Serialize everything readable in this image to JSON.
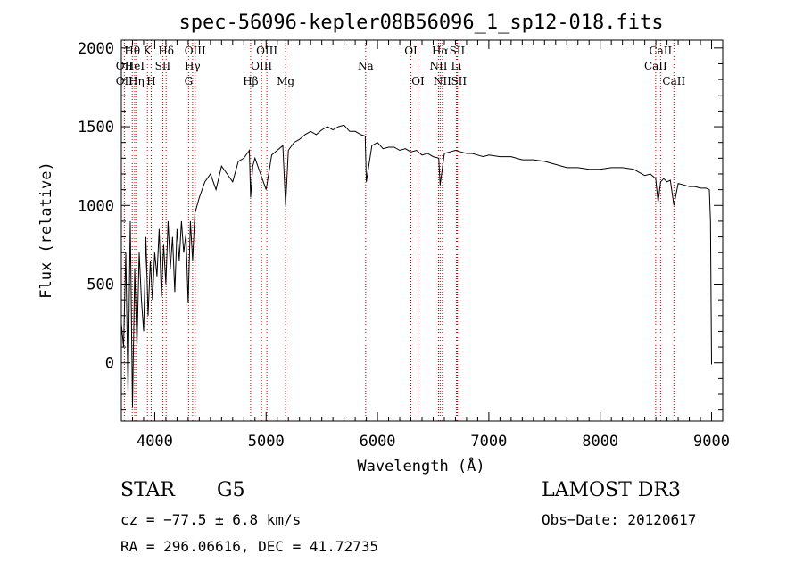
{
  "chart_data": {
    "type": "line",
    "title": "spec-56096-kepler08B56096_1_sp12-018.fits",
    "xlabel": "Wavelength (Å)",
    "ylabel": "Flux (relative)",
    "xlim": [
      3700,
      9100
    ],
    "ylim": [
      -370,
      2050
    ],
    "x_ticks": [
      4000,
      5000,
      6000,
      7000,
      8000,
      9000
    ],
    "y_ticks": [
      0,
      500,
      1000,
      1500,
      2000
    ],
    "grid": false,
    "series": [
      {
        "name": "spectrum",
        "x": [
          3700,
          3720,
          3740,
          3760,
          3780,
          3800,
          3820,
          3840,
          3860,
          3880,
          3900,
          3920,
          3940,
          3960,
          3980,
          4000,
          4020,
          4040,
          4060,
          4080,
          4100,
          4120,
          4140,
          4160,
          4180,
          4200,
          4220,
          4240,
          4260,
          4280,
          4300,
          4320,
          4340,
          4360,
          4380,
          4400,
          4450,
          4500,
          4550,
          4600,
          4650,
          4700,
          4750,
          4800,
          4850,
          4861,
          4880,
          4900,
          4950,
          5000,
          5050,
          5100,
          5150,
          5175,
          5200,
          5250,
          5300,
          5350,
          5400,
          5450,
          5500,
          5550,
          5600,
          5650,
          5700,
          5750,
          5800,
          5850,
          5890,
          5900,
          5950,
          6000,
          6050,
          6100,
          6150,
          6200,
          6250,
          6300,
          6350,
          6400,
          6450,
          6500,
          6550,
          6563,
          6600,
          6650,
          6700,
          6750,
          6800,
          6850,
          6900,
          6950,
          7000,
          7100,
          7200,
          7300,
          7400,
          7500,
          7600,
          7700,
          7800,
          7900,
          8000,
          8100,
          8200,
          8300,
          8400,
          8450,
          8498,
          8520,
          8542,
          8570,
          8600,
          8630,
          8662,
          8700,
          8750,
          8800,
          8850,
          8900,
          8950,
          8980,
          8990,
          9000
        ],
        "values": [
          250,
          100,
          700,
          -200,
          900,
          -280,
          600,
          100,
          700,
          400,
          200,
          800,
          300,
          650,
          400,
          700,
          550,
          850,
          420,
          750,
          500,
          900,
          600,
          800,
          450,
          850,
          650,
          900,
          700,
          820,
          380,
          900,
          650,
          950,
          1000,
          1050,
          1150,
          1200,
          1100,
          1250,
          1200,
          1150,
          1280,
          1300,
          1350,
          1050,
          1250,
          1300,
          1200,
          1100,
          1320,
          1350,
          1380,
          1000,
          1350,
          1400,
          1420,
          1450,
          1470,
          1450,
          1480,
          1500,
          1480,
          1500,
          1510,
          1470,
          1470,
          1450,
          1440,
          1150,
          1380,
          1400,
          1360,
          1370,
          1370,
          1350,
          1360,
          1340,
          1350,
          1320,
          1330,
          1310,
          1300,
          1130,
          1330,
          1340,
          1350,
          1340,
          1330,
          1330,
          1320,
          1310,
          1320,
          1310,
          1310,
          1290,
          1290,
          1280,
          1260,
          1240,
          1240,
          1230,
          1230,
          1240,
          1240,
          1230,
          1190,
          1200,
          1170,
          1020,
          1150,
          1170,
          1150,
          1160,
          1000,
          1140,
          1130,
          1120,
          1120,
          1110,
          1110,
          1100,
          900,
          -10
        ]
      }
    ],
    "line_markers": [
      {
        "wavelength": 3727,
        "label": "OII",
        "row": 2
      },
      {
        "wavelength": 3727,
        "label": "OII",
        "row": 3
      },
      {
        "wavelength": 3798,
        "label": "Hθ",
        "row": 1
      },
      {
        "wavelength": 3820,
        "label": "HeI",
        "row": 2
      },
      {
        "wavelength": 3835,
        "label": "Hη",
        "row": 3
      },
      {
        "wavelength": 3934,
        "label": "K",
        "row": 1
      },
      {
        "wavelength": 3968,
        "label": "H",
        "row": 3
      },
      {
        "wavelength": 4072,
        "label": "SII",
        "row": 2
      },
      {
        "wavelength": 4102,
        "label": "Hδ",
        "row": 1
      },
      {
        "wavelength": 4304,
        "label": "G",
        "row": 3
      },
      {
        "wavelength": 4340,
        "label": "Hγ",
        "row": 2
      },
      {
        "wavelength": 4363,
        "label": "OIII",
        "row": 1
      },
      {
        "wavelength": 4861,
        "label": "Hβ",
        "row": 3
      },
      {
        "wavelength": 4959,
        "label": "OIII",
        "row": 2
      },
      {
        "wavelength": 5007,
        "label": "OIII",
        "row": 1
      },
      {
        "wavelength": 5175,
        "label": "Mg",
        "row": 3
      },
      {
        "wavelength": 5894,
        "label": "Na",
        "row": 2
      },
      {
        "wavelength": 6300,
        "label": "OI",
        "row": 1
      },
      {
        "wavelength": 6364,
        "label": "OI",
        "row": 3
      },
      {
        "wavelength": 6548,
        "label": "NII",
        "row": 2
      },
      {
        "wavelength": 6563,
        "label": "Hα",
        "row": 1
      },
      {
        "wavelength": 6583,
        "label": "NII",
        "row": 3
      },
      {
        "wavelength": 6708,
        "label": "Li",
        "row": 2
      },
      {
        "wavelength": 6716,
        "label": "SII",
        "row": 1
      },
      {
        "wavelength": 6731,
        "label": "SII",
        "row": 3
      },
      {
        "wavelength": 8498,
        "label": "CaII",
        "row": 2
      },
      {
        "wavelength": 8542,
        "label": "CaII",
        "row": 1
      },
      {
        "wavelength": 8662,
        "label": "CaII",
        "row": 3
      }
    ],
    "colors": {
      "line": "#000000",
      "marker": "#cc0000"
    }
  },
  "info": {
    "object_class": "STAR",
    "subclass": "G5",
    "survey": "LAMOST DR3",
    "redshift_text": "cz = −77.5 ± 6.8 km/s",
    "obs_date": "Obs−Date: 20120617",
    "coords": "RA = 296.06616, DEC =  41.72735"
  }
}
